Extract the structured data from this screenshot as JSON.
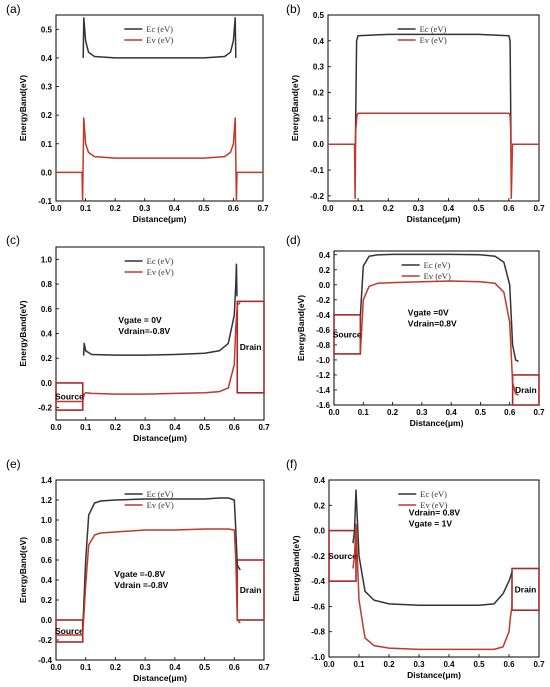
{
  "chart_data": [
    {
      "panel": "(a)",
      "type": "line",
      "xlabel": "Distance(μm)",
      "ylabel": "EnergyBand(eV)",
      "xlim": [
        0.0,
        0.7
      ],
      "ylim": [
        -0.1,
        0.55
      ],
      "xticks": [
        "0.0",
        "0.1",
        "0.2",
        "0.3",
        "0.4",
        "0.5",
        "0.6",
        "0.7"
      ],
      "yticks": [
        "-0.1",
        "0.0",
        "0.1",
        "0.2",
        "0.3",
        "0.4",
        "0.5"
      ],
      "yticks_v": [
        -0.1,
        0.0,
        0.1,
        0.2,
        0.3,
        0.4,
        0.5
      ],
      "legend": "top-right",
      "series": [
        {
          "name": "Ec (eV)",
          "color": "#333333",
          "x": [
            0.092,
            0.094,
            0.1,
            0.11,
            0.13,
            0.2,
            0.3,
            0.4,
            0.5,
            0.57,
            0.59,
            0.6,
            0.606,
            0.608
          ],
          "y": [
            0.4,
            0.54,
            0.46,
            0.42,
            0.405,
            0.4,
            0.4,
            0.4,
            0.4,
            0.405,
            0.42,
            0.46,
            0.54,
            0.4
          ]
        },
        {
          "name": "Ev (eV)",
          "color": "#C0392B",
          "x": [
            0.0,
            0.088,
            0.09,
            0.092,
            0.094,
            0.1,
            0.11,
            0.13,
            0.2,
            0.3,
            0.4,
            0.5,
            0.57,
            0.59,
            0.6,
            0.606,
            0.608,
            0.61,
            0.612,
            0.7
          ],
          "y": [
            0.0,
            0.0,
            -0.1,
            0.05,
            0.19,
            0.1,
            0.07,
            0.055,
            0.05,
            0.05,
            0.05,
            0.05,
            0.055,
            0.07,
            0.1,
            0.19,
            0.05,
            -0.1,
            0.0,
            0.0
          ]
        }
      ]
    },
    {
      "panel": "(b)",
      "type": "line",
      "xlabel": "Distance(μm)",
      "ylabel": "EnergyBand(eV)",
      "xlim": [
        0.0,
        0.7
      ],
      "ylim": [
        -0.22,
        0.5
      ],
      "xticks": [
        "0.0",
        "0.1",
        "0.2",
        "0.3",
        "0.4",
        "0.5",
        "0.6",
        "0.7"
      ],
      "yticks": [
        "-0.2",
        "-0.1",
        "0.0",
        "0.1",
        "0.2",
        "0.3",
        "0.4",
        "0.5"
      ],
      "yticks_v": [
        -0.2,
        -0.1,
        0.0,
        0.1,
        0.2,
        0.3,
        0.4,
        0.5
      ],
      "legend": "top-right",
      "series": [
        {
          "name": "Ec (eV)",
          "color": "#333333",
          "x": [
            0.091,
            0.095,
            0.1,
            0.2,
            0.3,
            0.4,
            0.5,
            0.6,
            0.604,
            0.607
          ],
          "y": [
            0.0,
            0.4,
            0.42,
            0.425,
            0.425,
            0.425,
            0.425,
            0.42,
            0.4,
            0.0
          ]
        },
        {
          "name": "Ev (eV)",
          "color": "#C0392B",
          "x": [
            0.0,
            0.088,
            0.09,
            0.092,
            0.096,
            0.1,
            0.2,
            0.3,
            0.4,
            0.5,
            0.6,
            0.604,
            0.606,
            0.608,
            0.612,
            0.7
          ],
          "y": [
            0.0,
            0.0,
            -0.21,
            0.05,
            0.11,
            0.12,
            0.12,
            0.12,
            0.12,
            0.12,
            0.12,
            0.11,
            0.05,
            -0.21,
            0.0,
            0.0
          ]
        }
      ]
    },
    {
      "panel": "(c)",
      "type": "line",
      "xlabel": "Distance(μm)",
      "ylabel": "EnergyBand(eV)",
      "xlim": [
        0.0,
        0.7
      ],
      "ylim": [
        -0.3,
        1.1
      ],
      "xticks": [
        "0.0",
        "0.1",
        "0.2",
        "0.3",
        "0.4",
        "0.5",
        "0.6",
        "0.7"
      ],
      "yticks": [
        "-0.2",
        "0.0",
        "0.2",
        "0.4",
        "0.6",
        "0.8",
        "1.0"
      ],
      "yticks_v": [
        -0.2,
        0.0,
        0.2,
        0.4,
        0.6,
        0.8,
        1.0
      ],
      "legend": "top-right",
      "annotations": [
        "Vgate = 0V",
        "Vdrain=-0.8V"
      ],
      "regions": [
        {
          "label": "Source",
          "x": [
            0.0,
            0.09
          ],
          "y": [
            -0.22,
            0.0
          ]
        },
        {
          "label": "Drain",
          "x": [
            0.61,
            0.7
          ],
          "y": [
            -0.08,
            0.66
          ]
        }
      ],
      "series": [
        {
          "name": "Ec (eV)",
          "color": "#333333",
          "x": [
            0.093,
            0.095,
            0.1,
            0.12,
            0.2,
            0.3,
            0.4,
            0.5,
            0.55,
            0.58,
            0.6,
            0.605,
            0.607,
            0.609
          ],
          "y": [
            0.22,
            0.32,
            0.26,
            0.23,
            0.225,
            0.225,
            0.23,
            0.24,
            0.26,
            0.32,
            0.55,
            0.8,
            0.96,
            0.7
          ]
        },
        {
          "name": "Ev (eV)",
          "color": "#C0392B",
          "x": [
            0.0,
            0.09,
            0.095,
            0.1,
            0.12,
            0.2,
            0.3,
            0.4,
            0.5,
            0.55,
            0.58,
            0.6,
            0.605,
            0.61,
            0.62
          ],
          "y": [
            -0.15,
            -0.15,
            -0.09,
            -0.08,
            -0.085,
            -0.09,
            -0.09,
            -0.085,
            -0.08,
            -0.07,
            -0.04,
            0.15,
            0.45,
            0.63,
            0.65
          ]
        }
      ]
    },
    {
      "panel": "(d)",
      "type": "line",
      "xlabel": "Distance(μm)",
      "ylabel": "EnergyBand(eV)",
      "xlim": [
        0.0,
        0.7
      ],
      "ylim": [
        -1.6,
        0.45
      ],
      "xticks": [
        "0.0",
        "0.1",
        "0.2",
        "0.3",
        "0.4",
        "0.5",
        "0.6",
        "0.7"
      ],
      "yticks": [
        "-1.6",
        "-1.4",
        "-1.2",
        "-1.0",
        "-0.8",
        "-0.6",
        "-0.4",
        "-0.2",
        "0.0",
        "0.2",
        "0.4"
      ],
      "yticks_v": [
        -1.6,
        -1.4,
        -1.2,
        -1.0,
        -0.8,
        -0.6,
        -0.4,
        -0.2,
        0.0,
        0.2,
        0.4
      ],
      "legend": "top-right",
      "annotations": [
        "Vgate =0V",
        "Vdrain=0.8V"
      ],
      "regions": [
        {
          "label": "Source",
          "x": [
            0.0,
            0.09
          ],
          "y": [
            -0.92,
            -0.4
          ]
        },
        {
          "label": "Drain",
          "x": [
            0.61,
            0.7
          ],
          "y": [
            -1.6,
            -1.2
          ]
        }
      ],
      "series": [
        {
          "name": "Ec (eV)",
          "color": "#333333",
          "x": [
            0.09,
            0.1,
            0.12,
            0.15,
            0.2,
            0.3,
            0.4,
            0.5,
            0.55,
            0.58,
            0.6,
            0.61,
            0.62,
            0.63
          ],
          "y": [
            -0.4,
            0.25,
            0.38,
            0.4,
            0.405,
            0.405,
            0.405,
            0.4,
            0.38,
            0.3,
            0.0,
            -0.8,
            -1.0,
            -1.02
          ]
        },
        {
          "name": "Ev (eV)",
          "color": "#C0392B",
          "x": [
            0.09,
            0.1,
            0.12,
            0.15,
            0.2,
            0.3,
            0.4,
            0.5,
            0.55,
            0.58,
            0.6,
            0.61,
            0.62,
            0.63
          ],
          "y": [
            -0.9,
            -0.2,
            -0.02,
            0.02,
            0.03,
            0.04,
            0.05,
            0.04,
            0.02,
            -0.1,
            -0.5,
            -1.3,
            -1.45,
            -1.47
          ]
        }
      ]
    },
    {
      "panel": "(e)",
      "type": "line",
      "xlabel": "Distance(μm)",
      "ylabel": "EnergyBand(eV)",
      "xlim": [
        0.0,
        0.7
      ],
      "ylim": [
        -0.4,
        1.4
      ],
      "xticks": [
        "0.0",
        "0.1",
        "0.2",
        "0.3",
        "0.4",
        "0.5",
        "0.6",
        "0.7"
      ],
      "yticks": [
        "-0.4",
        "-0.2",
        "0.0",
        "0.2",
        "0.4",
        "0.6",
        "0.8",
        "1.0",
        "1.2",
        "1.4"
      ],
      "yticks_v": [
        -0.4,
        -0.2,
        0.0,
        0.2,
        0.4,
        0.6,
        0.8,
        1.0,
        1.2,
        1.4
      ],
      "legend": "top-right",
      "annotations": [
        "Vgate =-0.8V",
        "Vdrain =-0.8V"
      ],
      "regions": [
        {
          "label": "Source",
          "x": [
            0.0,
            0.09
          ],
          "y": [
            -0.22,
            0.0
          ]
        },
        {
          "label": "Drain",
          "x": [
            0.61,
            0.7
          ],
          "y": [
            0.0,
            0.6
          ]
        }
      ],
      "series": [
        {
          "name": "Ec (eV)",
          "color": "#333333",
          "x": [
            0.09,
            0.1,
            0.11,
            0.13,
            0.15,
            0.2,
            0.3,
            0.4,
            0.5,
            0.55,
            0.58,
            0.6,
            0.605,
            0.61,
            0.62
          ],
          "y": [
            -0.1,
            0.6,
            1.05,
            1.17,
            1.19,
            1.2,
            1.21,
            1.21,
            1.21,
            1.22,
            1.22,
            1.2,
            0.9,
            0.55,
            0.5
          ]
        },
        {
          "name": "Ev (eV)",
          "color": "#C0392B",
          "x": [
            0.0,
            0.09,
            0.1,
            0.11,
            0.13,
            0.15,
            0.2,
            0.3,
            0.4,
            0.5,
            0.55,
            0.58,
            0.6,
            0.605,
            0.61,
            0.62
          ],
          "y": [
            -0.15,
            -0.15,
            0.35,
            0.75,
            0.85,
            0.87,
            0.88,
            0.9,
            0.9,
            0.91,
            0.91,
            0.91,
            0.9,
            0.6,
            0.0,
            -0.03
          ]
        }
      ]
    },
    {
      "panel": "(f)",
      "type": "line",
      "xlabel": "Distance(μm)",
      "ylabel": "EnergyBand(eV)",
      "xlim": [
        0.0,
        0.7
      ],
      "ylim": [
        -1.0,
        0.4
      ],
      "xticks": [
        "0.0",
        "0.1",
        "0.2",
        "0.3",
        "0.4",
        "0.5",
        "0.6",
        "0.7"
      ],
      "yticks": [
        "-1.0",
        "-0.8",
        "-0.6",
        "-0.4",
        "-0.2",
        "0.0",
        "0.2",
        "0.4"
      ],
      "yticks_v": [
        -1.0,
        -0.8,
        -0.6,
        -0.4,
        -0.2,
        0.0,
        0.2,
        0.4
      ],
      "legend": "top-right",
      "annotations": [
        "Vdrain= 0.8V",
        "Vgate = 1V"
      ],
      "regions": [
        {
          "label": "Source",
          "x": [
            0.0,
            0.09
          ],
          "y": [
            -0.4,
            0.0
          ]
        },
        {
          "label": "Drain",
          "x": [
            0.61,
            0.7
          ],
          "y": [
            -0.63,
            -0.3
          ]
        }
      ],
      "series": [
        {
          "name": "Ec (eV)",
          "color": "#333333",
          "x": [
            0.08,
            0.085,
            0.09,
            0.1,
            0.12,
            0.15,
            0.2,
            0.3,
            0.4,
            0.5,
            0.55,
            0.58,
            0.6,
            0.61
          ],
          "y": [
            -0.1,
            0.0,
            0.32,
            -0.2,
            -0.48,
            -0.55,
            -0.58,
            -0.59,
            -0.59,
            -0.59,
            -0.58,
            -0.5,
            -0.4,
            -0.33
          ]
        },
        {
          "name": "Ev (eV)",
          "color": "#C0392B",
          "x": [
            0.08,
            0.085,
            0.09,
            0.1,
            0.12,
            0.15,
            0.2,
            0.3,
            0.4,
            0.5,
            0.55,
            0.58,
            0.6,
            0.605,
            0.61
          ],
          "y": [
            -0.3,
            -0.2,
            0.05,
            -0.55,
            -0.85,
            -0.91,
            -0.93,
            -0.94,
            -0.94,
            -0.94,
            -0.94,
            -0.92,
            -0.8,
            -0.68,
            -0.6
          ]
        }
      ]
    }
  ]
}
